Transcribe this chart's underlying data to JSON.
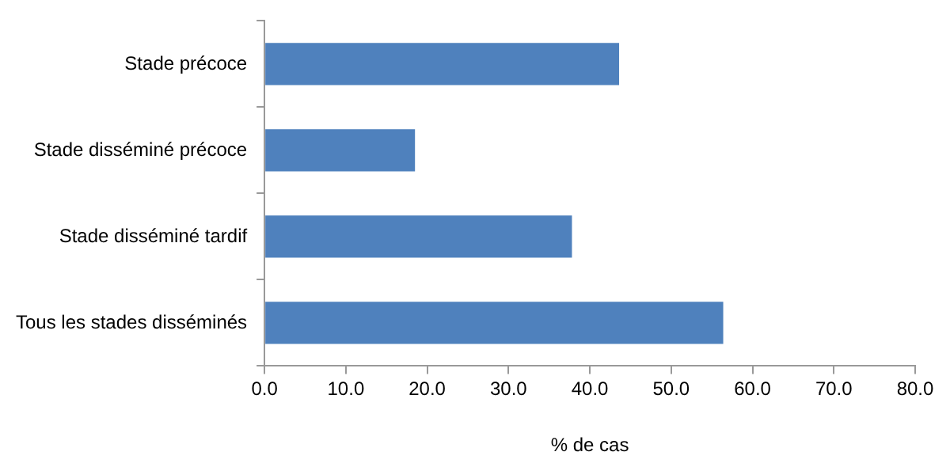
{
  "chart_data": {
    "type": "bar",
    "orientation": "horizontal",
    "xlabel": "% de cas",
    "categories": [
      "Stade précoce",
      "Stade disséminé précoce",
      "Stade disséminé tardif",
      "Tous les stades disséminés"
    ],
    "values": [
      43.6,
      18.5,
      37.8,
      56.4
    ],
    "color": "#4f81bd",
    "xlim": [
      0,
      80
    ],
    "xticks": [
      {
        "value": 0,
        "label": "0.0"
      },
      {
        "value": 10,
        "label": "10.0"
      },
      {
        "value": 20,
        "label": "20.0"
      },
      {
        "value": 30,
        "label": "30.0"
      },
      {
        "value": 40,
        "label": "40.0"
      },
      {
        "value": 50,
        "label": "50.0"
      },
      {
        "value": 60,
        "label": "60.0"
      },
      {
        "value": 70,
        "label": "70.0"
      },
      {
        "value": 80,
        "label": "80.0"
      }
    ],
    "grid": false,
    "legend": false
  }
}
